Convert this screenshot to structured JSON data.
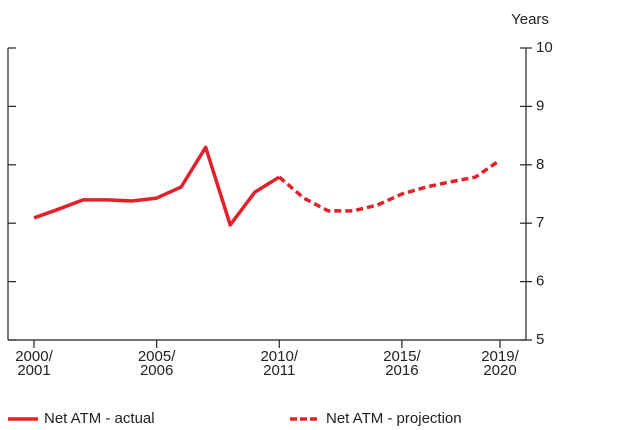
{
  "chart_data": {
    "type": "line",
    "y_label": "Years",
    "categories": [
      "2000/\n2001",
      null,
      null,
      null,
      null,
      "2005/\n2006",
      null,
      null,
      null,
      null,
      "2010/\n2011",
      null,
      null,
      null,
      null,
      "2015/\n2016",
      null,
      null,
      null,
      "2019/\n2020"
    ],
    "series": [
      {
        "name": "Net ATM - actual",
        "color": "#e3212b",
        "dashed": false,
        "values": [
          7.09,
          7.24,
          7.4,
          7.4,
          7.38,
          7.43,
          7.62,
          8.3,
          6.97,
          7.53,
          7.79,
          null,
          null,
          null,
          null,
          null,
          null,
          null,
          null,
          null
        ]
      },
      {
        "name": "Net ATM - projection",
        "color": "#e3212b",
        "dashed": true,
        "values": [
          null,
          null,
          null,
          null,
          null,
          null,
          null,
          null,
          null,
          null,
          7.79,
          7.43,
          7.21,
          7.21,
          7.31,
          7.5,
          7.62,
          7.71,
          7.79,
          8.08
        ]
      }
    ],
    "ylim": [
      5,
      10
    ],
    "yticks": [
      5,
      6,
      7,
      8,
      9,
      10
    ]
  }
}
